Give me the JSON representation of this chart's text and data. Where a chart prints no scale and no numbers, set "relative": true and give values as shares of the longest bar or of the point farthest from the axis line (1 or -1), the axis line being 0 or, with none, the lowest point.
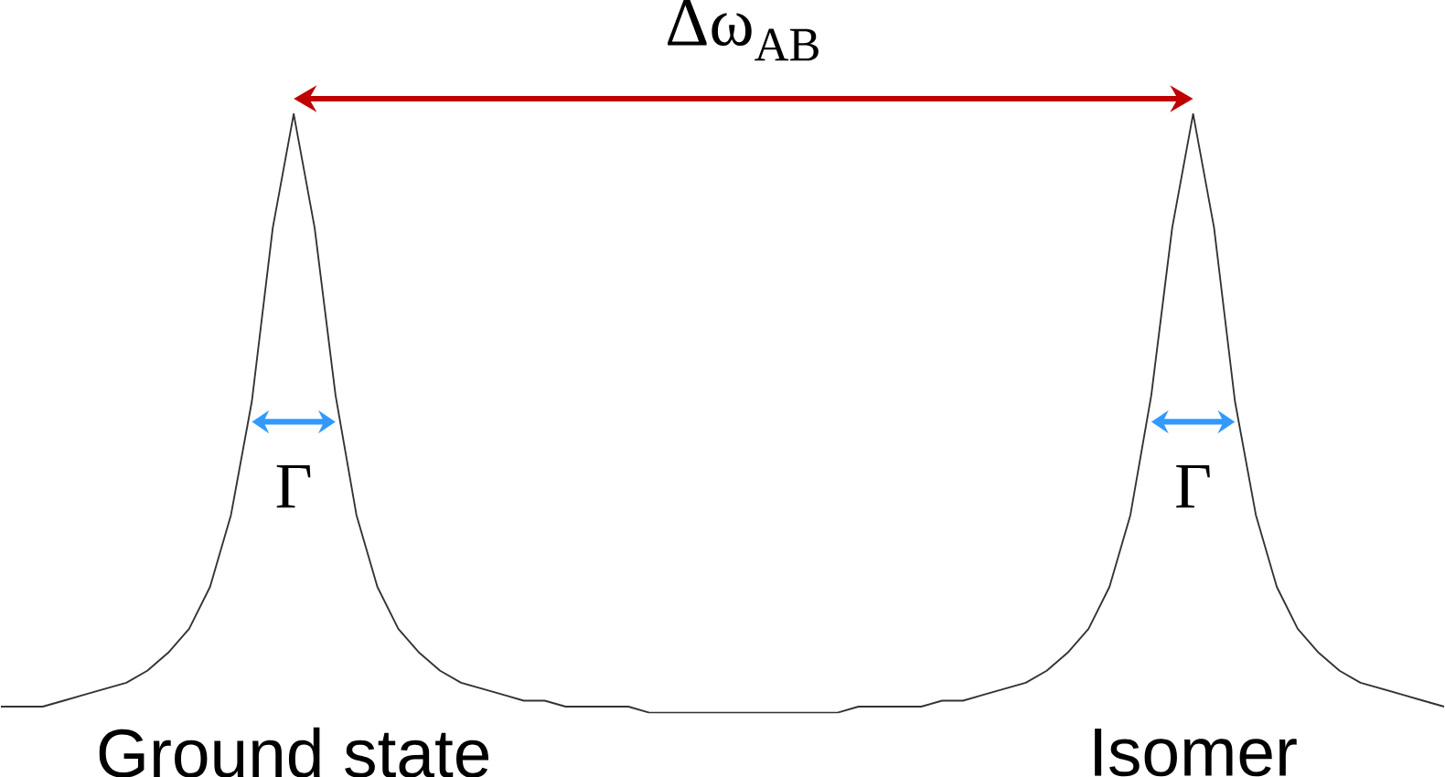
{
  "chart_data": {
    "type": "line",
    "relative": true,
    "color": "#333333",
    "categories": [
      null,
      null,
      null,
      null,
      null,
      null,
      null,
      null,
      null,
      null,
      null,
      null,
      null,
      null,
      null,
      null,
      null,
      null,
      null,
      null,
      null,
      null,
      null,
      null,
      null,
      null,
      null,
      null,
      null,
      null,
      null,
      null,
      null,
      null,
      null,
      null,
      null,
      null,
      null,
      null,
      null,
      null,
      null,
      null,
      null,
      null,
      null,
      null,
      null,
      null,
      null,
      null,
      null,
      null,
      null,
      null,
      null,
      null,
      null,
      null,
      null,
      null,
      null,
      null,
      null,
      null,
      null,
      null,
      null,
      null
    ],
    "values": [
      0.01,
      0.01,
      0.01,
      0.02,
      0.03,
      0.04,
      0.05,
      0.07,
      0.1,
      0.14,
      0.21,
      0.33,
      0.52,
      0.81,
      1,
      0.81,
      0.53,
      0.33,
      0.21,
      0.14,
      0.1,
      0.07,
      0.05,
      0.04,
      0.03,
      0.02,
      0.02,
      0.01,
      0.01,
      0.01,
      0.01,
      0,
      0,
      0,
      0,
      0,
      0,
      0,
      0,
      0,
      0,
      0.01,
      0.01,
      0.01,
      0.01,
      0.02,
      0.02,
      0.03,
      0.04,
      0.05,
      0.07,
      0.1,
      0.14,
      0.21,
      0.33,
      0.53,
      0.81,
      1,
      0.81,
      0.52,
      0.33,
      0.21,
      0.14,
      0.1,
      0.07,
      0.05,
      0.04,
      0.03,
      0.02,
      0.01
    ],
    "annotations": [
      "Δω$_{AB}$",
      "Γ",
      "Γ",
      "Ground state",
      "Isomer"
    ]
  }
}
